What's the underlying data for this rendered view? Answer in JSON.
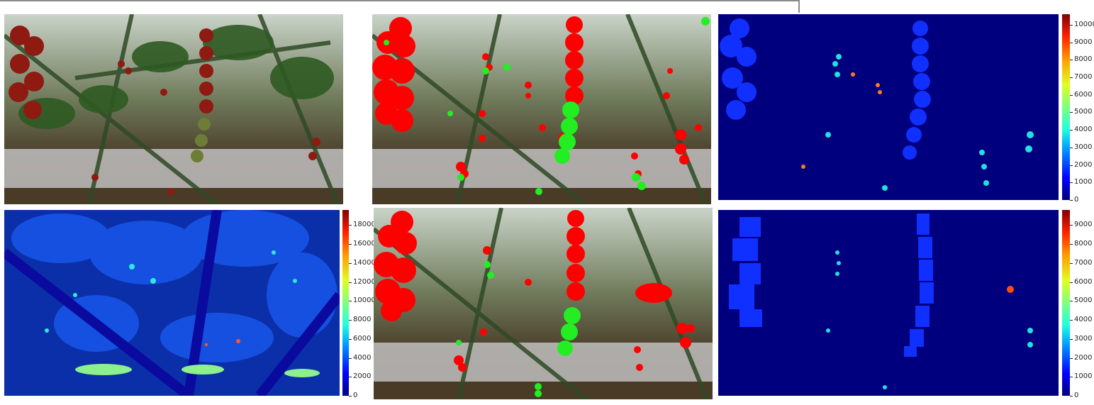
{
  "figure": {
    "layout": "2x3 image grid",
    "panels": [
      {
        "id": "rgb-photo",
        "content": "greenhouse tomato plants photograph"
      },
      {
        "id": "detections-top",
        "content": "red and green tomato detection overlay"
      },
      {
        "id": "heatmap-top-right",
        "content": "instance label map"
      },
      {
        "id": "heatmap-bottom-left",
        "content": "depth-like label map"
      },
      {
        "id": "detections-bottom",
        "content": "red and green tomato detection overlay"
      },
      {
        "id": "heatmap-bottom-right",
        "content": "instance label map"
      }
    ]
  },
  "colorbars": {
    "top_right": {
      "ticks": [
        "0",
        "1000",
        "2000",
        "3000",
        "4000",
        "5000",
        "6000",
        "7000",
        "8000",
        "9000",
        "10000"
      ],
      "max": 10600
    },
    "bottom_left": {
      "ticks": [
        "0",
        "2000",
        "4000",
        "6000",
        "8000",
        "10000",
        "12000",
        "14000",
        "16000",
        "18000"
      ],
      "max": 19600
    },
    "bottom_right": {
      "ticks": [
        "0",
        "1000",
        "2000",
        "3000",
        "4000",
        "5000",
        "6000",
        "7000",
        "8000",
        "9000"
      ],
      "max": 9800
    }
  },
  "colors": {
    "detection_red": "#ff0000",
    "detection_green": "#22ee22",
    "map_background": "#00007f",
    "map_blue": "#1030ff",
    "map_cyan": "#20e0e0"
  }
}
